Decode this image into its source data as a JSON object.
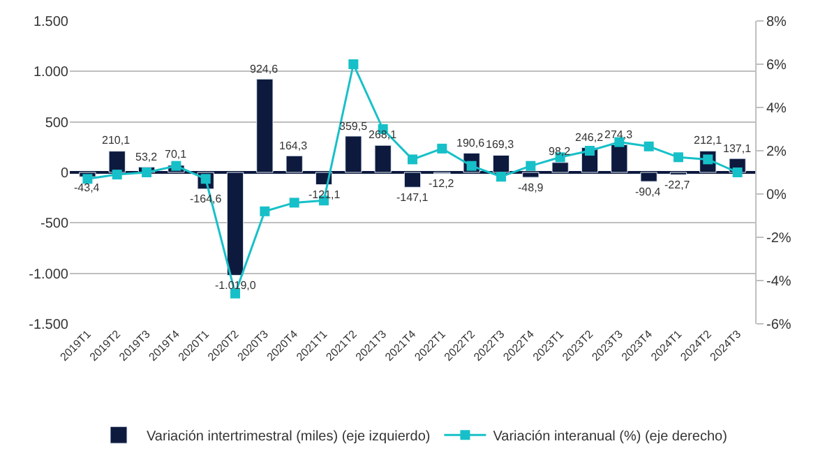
{
  "chart_data": {
    "type": "bar",
    "categories": [
      "2019T1",
      "2019T2",
      "2019T3",
      "2019T4",
      "2020T1",
      "2020T2",
      "2020T3",
      "2020T4",
      "2021T1",
      "2021T2",
      "2021T3",
      "2021T4",
      "2022T1",
      "2022T2",
      "2022T3",
      "2022T4",
      "2023T1",
      "2023T2",
      "2023T3",
      "2023T4",
      "2024T1",
      "2024T2",
      "2024T3"
    ],
    "series": [
      {
        "name": "Variación intertrimestral (miles) (eje izquierdo)",
        "color": "#0d1a3e",
        "values": [
          -43.4,
          210.1,
          53.2,
          70.1,
          -164.6,
          -1019.0,
          924.6,
          164.3,
          -121.1,
          359.5,
          268.1,
          -147.1,
          -12.2,
          190.6,
          169.3,
          -48.9,
          98.2,
          246.2,
          274.3,
          -90.4,
          -22.7,
          212.1,
          137.1
        ],
        "value_labels": [
          "-43,4",
          "210,1",
          "53,2",
          "70,1",
          "-164,6",
          "-1.019,0",
          "924,6",
          "164,3",
          "-121,1",
          "359,5",
          "268,1",
          "-147,1",
          "-12,2",
          "190,6",
          "169,3",
          "-48,9",
          "98,2",
          "246,2",
          "274,3",
          "-90,4",
          "-22,7",
          "212,1",
          "137,1"
        ]
      },
      {
        "name": "Variación interanual (%) (eje derecho)",
        "type": "line",
        "axis": "y2",
        "color": "#17c0c8",
        "marker": "square",
        "values": [
          0.7,
          0.9,
          1.0,
          1.3,
          0.7,
          -4.6,
          -0.8,
          -0.4,
          -0.3,
          6.0,
          3.0,
          1.6,
          2.1,
          1.3,
          0.8,
          1.3,
          1.7,
          2.0,
          2.4,
          2.2,
          1.7,
          1.6,
          1.0
        ]
      }
    ],
    "ylim": [
      -1500,
      1500
    ],
    "yticks": [
      {
        "value": -1500,
        "label": "-1.500"
      },
      {
        "value": -1000,
        "label": "-1.000"
      },
      -500,
      0,
      500,
      {
        "value": 1000,
        "label": "1.000"
      },
      {
        "value": 1500,
        "label": "1.500"
      }
    ],
    "y2lim": [
      -6,
      8
    ],
    "y2ticks": [
      {
        "value": -6,
        "label": "-6%"
      },
      {
        "value": -4,
        "label": "-4%"
      },
      {
        "value": -2,
        "label": "-2%"
      },
      {
        "value": 0,
        "label": "0%"
      },
      {
        "value": 2,
        "label": "2%"
      },
      {
        "value": 4,
        "label": "4%"
      },
      {
        "value": 6,
        "label": "6%"
      },
      {
        "value": 8,
        "label": "8%"
      }
    ],
    "grid": "y",
    "legend": "bottom"
  }
}
